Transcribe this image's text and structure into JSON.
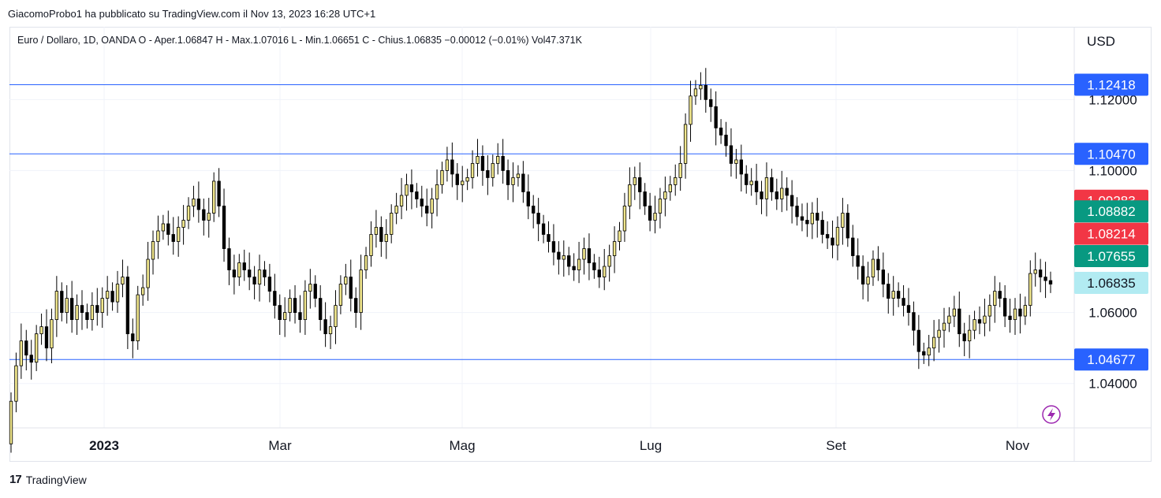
{
  "header": {
    "published_text": "GiacomoProbo1 ha pubblicato su TradingView.com il Nov 13, 2023 16:28 UTC+1"
  },
  "legend": {
    "text": "Euro / Dollaro, 1D, OANDA  O - Aper.1.06847  H - Max.1.07016  L - Min.1.06651  C - Chius.1.06835  −0.00012 (−0.01%)  Vol47.371K"
  },
  "currency_button": "USD",
  "footer": {
    "logo": "17",
    "brand": "TradingView"
  },
  "colors": {
    "candle_up": "#f0e68c",
    "candle_down": "#000000",
    "hline": "#2962ff",
    "price_blue": "#2962ff",
    "price_red": "#f23645",
    "price_green": "#089981",
    "price_current": "#b2ebf2",
    "alert_icon": "#9c27b0"
  },
  "chart_data": {
    "type": "candlestick",
    "symbol": "Euro / Dollaro",
    "timeframe": "1D",
    "exchange": "OANDA",
    "x_tick_labels": [
      "2023",
      "Mar",
      "Mag",
      "Lug",
      "Set",
      "Nov"
    ],
    "y_tick_labels": [
      "1.04000",
      "1.06000",
      "1.10000",
      "1.12000"
    ],
    "ylim": [
      1.0275,
      1.1405
    ],
    "grid": true,
    "horizontal_lines": [
      1.12418,
      1.1047,
      1.04677
    ],
    "price_labels": [
      {
        "value": "1.12418",
        "y": 1.12418,
        "color": "blue"
      },
      {
        "value": "1.10470",
        "y": 1.1047,
        "color": "blue"
      },
      {
        "value": "1.09283",
        "y": 1.0915,
        "color": "red"
      },
      {
        "value": "1.08882",
        "y": 1.0885,
        "color": "green"
      },
      {
        "value": "1.08214",
        "y": 1.0822,
        "color": "red"
      },
      {
        "value": "1.07655",
        "y": 1.0759,
        "color": "green"
      },
      {
        "value": "1.06835",
        "y": 1.06835,
        "color": "current"
      },
      {
        "value": "1.04677",
        "y": 1.04677,
        "color": "blue"
      }
    ],
    "closes": [
      1.035,
      1.045,
      1.052,
      1.048,
      1.046,
      1.054,
      1.056,
      1.05,
      1.058,
      1.066,
      1.06,
      1.064,
      1.058,
      1.062,
      1.06,
      1.058,
      1.062,
      1.06,
      1.064,
      1.066,
      1.063,
      1.068,
      1.07,
      1.054,
      1.052,
      1.065,
      1.067,
      1.075,
      1.08,
      1.083,
      1.085,
      1.082,
      1.08,
      1.084,
      1.086,
      1.09,
      1.092,
      1.089,
      1.086,
      1.088,
      1.097,
      1.09,
      1.078,
      1.072,
      1.07,
      1.074,
      1.072,
      1.07,
      1.068,
      1.072,
      1.07,
      1.066,
      1.062,
      1.058,
      1.06,
      1.064,
      1.06,
      1.058,
      1.066,
      1.068,
      1.064,
      1.058,
      1.054,
      1.056,
      1.062,
      1.068,
      1.07,
      1.064,
      1.06,
      1.072,
      1.076,
      1.082,
      1.084,
      1.08,
      1.082,
      1.088,
      1.09,
      1.093,
      1.096,
      1.094,
      1.092,
      1.09,
      1.088,
      1.092,
      1.096,
      1.1,
      1.103,
      1.099,
      1.096,
      1.097,
      1.098,
      1.102,
      1.104,
      1.1,
      1.098,
      1.102,
      1.104,
      1.1,
      1.096,
      1.098,
      1.099,
      1.094,
      1.09,
      1.088,
      1.085,
      1.082,
      1.08,
      1.077,
      1.075,
      1.076,
      1.073,
      1.072,
      1.075,
      1.078,
      1.074,
      1.072,
      1.07,
      1.073,
      1.076,
      1.08,
      1.083,
      1.09,
      1.096,
      1.098,
      1.094,
      1.09,
      1.086,
      1.088,
      1.092,
      1.094,
      1.096,
      1.098,
      1.102,
      1.113,
      1.121,
      1.123,
      1.124,
      1.12,
      1.118,
      1.112,
      1.11,
      1.107,
      1.102,
      1.103,
      1.099,
      1.096,
      1.097,
      1.094,
      1.092,
      1.098,
      1.094,
      1.092,
      1.095,
      1.093,
      1.09,
      1.087,
      1.086,
      1.085,
      1.088,
      1.086,
      1.082,
      1.081,
      1.079,
      1.084,
      1.088,
      1.081,
      1.076,
      1.073,
      1.068,
      1.07,
      1.075,
      1.072,
      1.068,
      1.064,
      1.066,
      1.064,
      1.062,
      1.06,
      1.055,
      1.049,
      1.048,
      1.05,
      1.053,
      1.055,
      1.057,
      1.059,
      1.061,
      1.054,
      1.052,
      1.055,
      1.058,
      1.057,
      1.059,
      1.062,
      1.066,
      1.064,
      1.059,
      1.058,
      1.061,
      1.059,
      1.062,
      1.071,
      1.072,
      1.07,
      1.069,
      1.068
    ]
  }
}
